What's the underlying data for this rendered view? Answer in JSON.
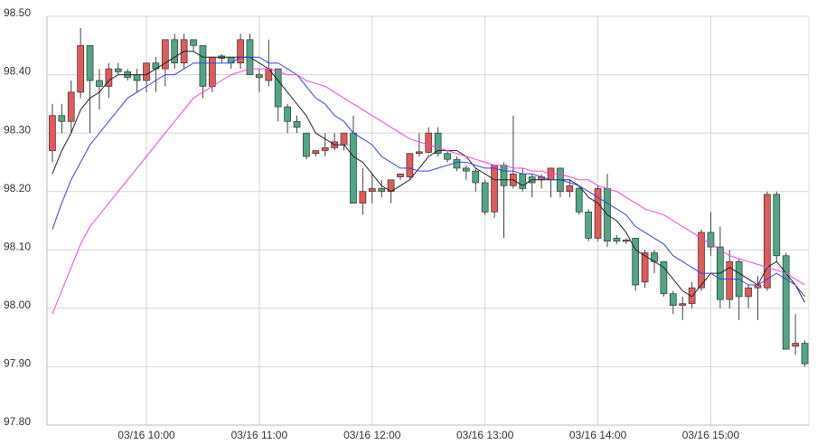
{
  "chart_data": {
    "type": "candlestick",
    "categories": [
      null,
      null,
      null,
      null,
      null,
      null,
      null,
      null,
      null,
      null,
      "03/16 10:00",
      null,
      null,
      null,
      null,
      null,
      null,
      null,
      null,
      null,
      null,
      null,
      "03/16 11:00",
      null,
      null,
      null,
      null,
      null,
      null,
      null,
      null,
      null,
      null,
      null,
      "03/16 12:00",
      null,
      null,
      null,
      null,
      null,
      null,
      null,
      null,
      null,
      null,
      null,
      "03/16 13:00",
      null,
      null,
      null,
      null,
      null,
      null,
      null,
      null,
      null,
      null,
      null,
      "03/16 14:00",
      null,
      null,
      null,
      null,
      null,
      null,
      null,
      null,
      null,
      null,
      null,
      "03/16 15:00",
      null,
      null,
      null,
      null,
      null,
      null,
      null,
      null,
      null,
      null
    ],
    "open": [
      98.27,
      98.33,
      98.32,
      98.37,
      98.45,
      98.39,
      98.38,
      98.41,
      98.405,
      98.4,
      98.39,
      98.42,
      98.41,
      98.46,
      98.42,
      98.46,
      98.45,
      98.38,
      98.432,
      98.43,
      98.42,
      98.46,
      98.4,
      98.39,
      98.41,
      98.345,
      98.32,
      98.3,
      98.265,
      98.27,
      98.275,
      98.28,
      98.3,
      98.18,
      98.2,
      98.205,
      98.2,
      98.225,
      98.225,
      98.265,
      98.267,
      98.3,
      98.265,
      98.255,
      98.24,
      98.235,
      98.215,
      98.165,
      98.245,
      98.21,
      98.23,
      98.225,
      98.22,
      98.22,
      98.24,
      98.2,
      98.205,
      98.165,
      98.12,
      98.205,
      98.12,
      98.115,
      98.12,
      98.045,
      98.095,
      98.08,
      98.025,
      98.005,
      98.008,
      98.035,
      98.13,
      98.105,
      98.015,
      98.08,
      98.02,
      98.035,
      98.035,
      98.195,
      98.09,
      97.935,
      97.94
    ],
    "high": [
      98.35,
      98.35,
      98.39,
      98.48,
      98.45,
      98.41,
      98.42,
      98.42,
      98.41,
      98.41,
      98.42,
      98.43,
      98.46,
      98.47,
      98.47,
      98.46,
      98.45,
      98.43,
      98.435,
      98.43,
      98.47,
      98.47,
      98.41,
      98.46,
      98.41,
      98.35,
      98.33,
      98.3,
      98.27,
      98.3,
      98.3,
      98.3,
      98.33,
      98.24,
      98.23,
      98.22,
      98.22,
      98.23,
      98.265,
      98.3,
      98.31,
      98.31,
      98.27,
      98.26,
      98.245,
      98.24,
      98.22,
      98.245,
      98.25,
      98.33,
      98.24,
      98.23,
      98.23,
      98.24,
      98.24,
      98.22,
      98.21,
      98.17,
      98.21,
      98.23,
      98.125,
      98.12,
      98.12,
      98.1,
      98.1,
      98.08,
      98.03,
      98.02,
      98.045,
      98.135,
      98.165,
      98.14,
      98.1,
      98.085,
      98.04,
      98.055,
      98.2,
      98.2,
      98.095,
      97.99,
      97.945
    ],
    "low": [
      98.25,
      98.3,
      98.3,
      98.36,
      98.3,
      98.34,
      98.36,
      98.4,
      98.39,
      98.37,
      98.37,
      98.37,
      98.38,
      98.41,
      98.41,
      98.44,
      98.36,
      98.37,
      98.42,
      98.41,
      98.41,
      98.4,
      98.37,
      98.38,
      98.32,
      98.3,
      98.3,
      98.255,
      98.26,
      98.26,
      98.27,
      98.27,
      98.18,
      98.16,
      98.18,
      98.19,
      98.18,
      98.22,
      98.22,
      98.26,
      98.265,
      98.26,
      98.25,
      98.235,
      98.22,
      98.2,
      98.16,
      98.155,
      98.12,
      98.205,
      98.2,
      98.19,
      98.205,
      98.19,
      98.19,
      98.19,
      98.16,
      98.115,
      98.115,
      98.105,
      98.11,
      98.11,
      98.03,
      98.035,
      98.06,
      98.02,
      97.99,
      97.98,
      98.0,
      98.03,
      98.09,
      98.0,
      98.0,
      97.98,
      98.0,
      97.98,
      98.03,
      98.08,
      97.93,
      97.92,
      97.9
    ],
    "close": [
      98.33,
      98.32,
      98.37,
      98.45,
      98.39,
      98.38,
      98.41,
      98.405,
      98.395,
      98.39,
      98.42,
      98.41,
      98.46,
      98.42,
      98.46,
      98.45,
      98.38,
      98.43,
      98.428,
      98.42,
      98.46,
      98.4,
      98.395,
      98.41,
      98.345,
      98.32,
      98.31,
      98.26,
      98.27,
      98.275,
      98.285,
      98.3,
      98.18,
      98.2,
      98.205,
      98.2,
      98.22,
      98.23,
      98.265,
      98.268,
      98.3,
      98.265,
      98.255,
      98.24,
      98.235,
      98.215,
      98.165,
      98.245,
      98.21,
      98.23,
      98.205,
      98.215,
      98.225,
      98.24,
      98.2,
      98.21,
      98.165,
      98.12,
      98.205,
      98.115,
      98.115,
      98.117,
      98.04,
      98.095,
      98.08,
      98.025,
      98.005,
      98.008,
      98.035,
      98.13,
      98.105,
      98.015,
      98.08,
      98.02,
      98.035,
      98.04,
      98.195,
      98.09,
      97.93,
      97.94,
      97.905
    ],
    "up_color": "#e05a5a",
    "down_color": "#4fa784",
    "lines": [
      {
        "color": "#222222",
        "values": [
          98.23,
          98.27,
          98.3,
          98.34,
          98.36,
          98.37,
          98.39,
          98.4,
          98.4,
          98.4,
          98.4,
          98.41,
          98.42,
          98.43,
          98.44,
          98.44,
          98.43,
          98.43,
          98.43,
          98.43,
          98.43,
          98.43,
          98.42,
          98.41,
          98.39,
          98.37,
          98.35,
          98.33,
          98.3,
          98.29,
          98.28,
          98.28,
          98.26,
          98.25,
          98.23,
          98.21,
          98.2,
          98.21,
          98.22,
          98.24,
          98.26,
          98.27,
          98.27,
          98.27,
          98.26,
          98.24,
          98.23,
          98.22,
          98.22,
          98.22,
          98.21,
          98.22,
          98.22,
          98.22,
          98.22,
          98.22,
          98.21,
          98.19,
          98.18,
          98.16,
          98.15,
          98.13,
          98.1,
          98.09,
          98.08,
          98.07,
          98.05,
          98.03,
          98.02,
          98.04,
          98.06,
          98.06,
          98.07,
          98.06,
          98.05,
          98.04,
          98.07,
          98.08,
          98.06,
          98.04,
          98.01
        ]
      },
      {
        "color": "#3344dd",
        "values": [
          98.135,
          98.18,
          98.22,
          98.25,
          98.28,
          98.3,
          98.32,
          98.34,
          98.36,
          98.37,
          98.38,
          98.39,
          98.4,
          98.4,
          98.41,
          98.42,
          98.42,
          98.42,
          98.42,
          98.42,
          98.43,
          98.43,
          98.43,
          98.42,
          98.42,
          98.41,
          98.4,
          98.38,
          98.36,
          98.35,
          98.33,
          98.32,
          98.3,
          98.29,
          98.28,
          98.26,
          98.25,
          98.24,
          98.24,
          98.235,
          98.235,
          98.24,
          98.245,
          98.25,
          98.25,
          98.245,
          98.24,
          98.24,
          98.235,
          98.235,
          98.23,
          98.23,
          98.225,
          98.22,
          98.22,
          98.215,
          98.21,
          98.2,
          98.19,
          98.18,
          98.17,
          98.16,
          98.14,
          98.13,
          98.12,
          98.11,
          98.09,
          98.08,
          98.07,
          98.06,
          98.06,
          98.05,
          98.05,
          98.05,
          98.04,
          98.04,
          98.05,
          98.06,
          98.05,
          98.04,
          98.02
        ]
      },
      {
        "color": "#ee44dd",
        "values": [
          97.99,
          98.03,
          98.07,
          98.11,
          98.14,
          98.16,
          98.18,
          98.2,
          98.22,
          98.24,
          98.26,
          98.28,
          98.3,
          98.32,
          98.34,
          98.36,
          98.37,
          98.38,
          98.39,
          98.4,
          98.405,
          98.41,
          98.41,
          98.41,
          98.405,
          98.4,
          98.4,
          98.39,
          98.385,
          98.38,
          98.37,
          98.36,
          98.35,
          98.34,
          98.33,
          98.32,
          98.31,
          98.3,
          98.29,
          98.285,
          98.28,
          98.275,
          98.27,
          98.265,
          98.26,
          98.255,
          98.25,
          98.245,
          98.245,
          98.24,
          98.24,
          98.235,
          98.235,
          98.23,
          98.23,
          98.225,
          98.22,
          98.22,
          98.21,
          98.205,
          98.2,
          98.19,
          98.18,
          98.17,
          98.165,
          98.16,
          98.15,
          98.14,
          98.13,
          98.12,
          98.11,
          98.1,
          98.09,
          98.085,
          98.08,
          98.075,
          98.07,
          98.065,
          98.06,
          98.05,
          98.04
        ]
      }
    ],
    "ylim": [
      97.8,
      98.5
    ],
    "yticks": [
      {
        "value": 97.8,
        "label": "97.80"
      },
      {
        "value": 97.9,
        "label": "97.90"
      },
      {
        "value": 98.0,
        "label": "98.00"
      },
      {
        "value": 98.1,
        "label": "98.10"
      },
      {
        "value": 98.2,
        "label": "98.20"
      },
      {
        "value": 98.3,
        "label": "98.30"
      },
      {
        "value": 98.4,
        "label": "98.40"
      },
      {
        "value": 98.5,
        "label": "98.50"
      }
    ],
    "grid": true
  }
}
